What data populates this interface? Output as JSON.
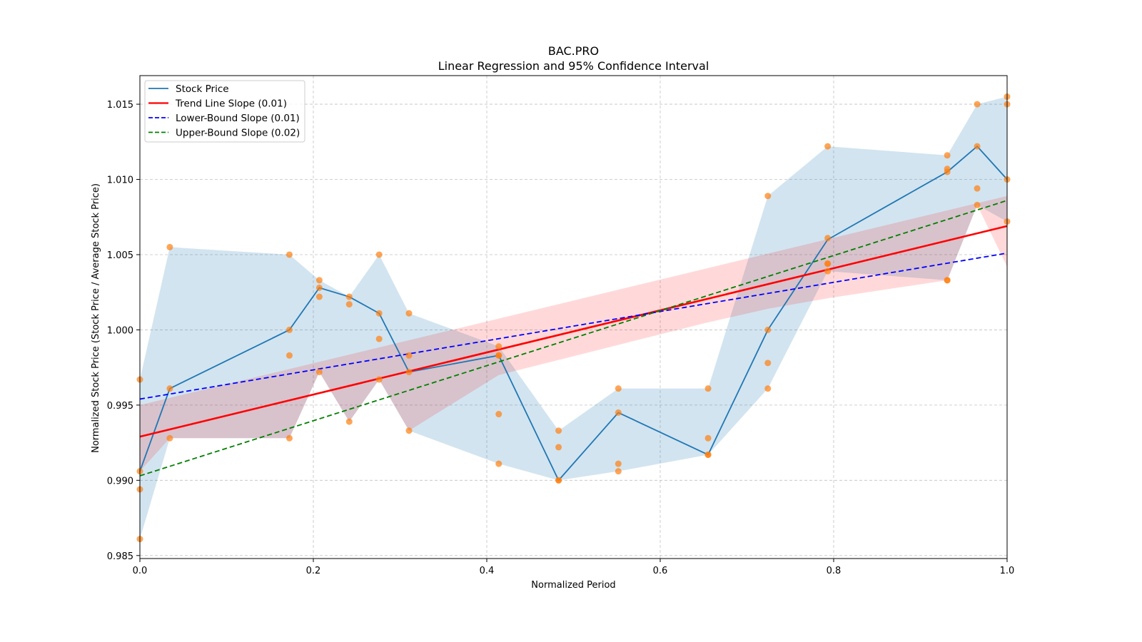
{
  "chart_data": {
    "type": "line",
    "title": "BAC.PRO",
    "subtitle": "Linear Regression and 95% Confidence Interval",
    "xlabel": "Normalized Period",
    "ylabel": "Normalized Stock Price (Stock Price / Average Stock Price)",
    "xlim": [
      0.0,
      1.0
    ],
    "ylim": [
      0.9848,
      1.0169
    ],
    "xticks": [
      0.0,
      0.2,
      0.4,
      0.6,
      0.8,
      1.0
    ],
    "xtick_labels": [
      "0.0",
      "0.2",
      "0.4",
      "0.6",
      "0.8",
      "1.0"
    ],
    "yticks": [
      0.985,
      0.99,
      0.995,
      1.0,
      1.005,
      1.01,
      1.015
    ],
    "ytick_labels": [
      "0.985",
      "0.990",
      "0.995",
      "1.000",
      "1.005",
      "1.010",
      "1.015"
    ],
    "grid": true,
    "legend_position": "top-left",
    "colors": {
      "stock": "#1f77b4",
      "stock_band": "#1f77b4",
      "scatter": "#ff7f0e",
      "trend": "#ff0000",
      "trend_band": "#ff0000",
      "lower": "#0000ff",
      "upper": "#008000"
    },
    "legend": [
      {
        "label": "Stock Price",
        "style": "solid",
        "color": "#1f77b4"
      },
      {
        "label": "Trend Line Slope (0.01)",
        "style": "solid",
        "color": "#ff0000"
      },
      {
        "label": "Lower-Bound Slope (0.01)",
        "style": "dashed",
        "color": "#0000ff"
      },
      {
        "label": "Upper-Bound Slope (0.02)",
        "style": "dashed",
        "color": "#008000"
      }
    ],
    "x": [
      0.0,
      0.0345,
      0.1724,
      0.2069,
      0.2414,
      0.2759,
      0.3103,
      0.4138,
      0.4828,
      0.5517,
      0.6552,
      0.7241,
      0.7931,
      0.931,
      0.9655,
      1.0
    ],
    "series": [
      {
        "name": "Stock Price",
        "values": [
          0.9906,
          0.9961,
          1.0,
          1.0028,
          1.0022,
          1.0011,
          0.9972,
          0.9983,
          0.99,
          0.9945,
          0.9917,
          1.0,
          1.006,
          1.0105,
          1.0122,
          1.01
        ]
      },
      {
        "name": "Stock Price Band Upper",
        "values": [
          0.9967,
          1.0055,
          1.005,
          1.0033,
          1.0022,
          1.005,
          1.0011,
          0.9989,
          0.9933,
          0.9961,
          0.9961,
          1.0089,
          1.0122,
          1.0116,
          1.015,
          1.0155
        ]
      },
      {
        "name": "Stock Price Band Lower",
        "values": [
          0.9861,
          0.9928,
          0.9928,
          0.9972,
          0.9939,
          0.9967,
          0.9933,
          0.9911,
          0.99,
          0.9906,
          0.9917,
          0.9961,
          1.0039,
          1.0033,
          1.0083,
          1.0072
        ]
      },
      {
        "name": "Trend Line Slope (0.01)",
        "values": [
          0.9929,
          1.0069
        ]
      },
      {
        "name": "Lower-Bound Slope (0.01)",
        "values": [
          0.9954,
          1.0051
        ]
      },
      {
        "name": "Upper-Bound Slope (0.02)",
        "values": [
          0.9903,
          1.0086
        ]
      },
      {
        "name": "Trend Band Upper",
        "values": [
          0.995,
          1.0089
        ]
      },
      {
        "name": "Trend Band Lower",
        "values": [
          0.9906,
          1.0042
        ]
      }
    ],
    "trend_band_lower_points": {
      "x": [
        0.0,
        0.0345,
        0.1724,
        0.2069,
        0.2414,
        0.2759,
        0.3103,
        0.4138,
        0.4828,
        0.5517,
        0.6552,
        0.7241,
        0.7931,
        0.931,
        0.9655,
        1.0
      ],
      "y": [
        0.9906,
        0.9928,
        0.9928,
        0.9972,
        0.9939,
        0.9967,
        0.9933,
        0.997,
        0.998,
        0.999,
        1.0005,
        1.0014,
        1.0021,
        1.0033,
        1.0083,
        1.0042
      ]
    },
    "scatter": {
      "x": [
        0.0,
        0.0,
        0.0,
        0.0,
        0.0345,
        0.0345,
        0.0345,
        0.1724,
        0.1724,
        0.1724,
        0.1724,
        0.2069,
        0.2069,
        0.2069,
        0.2069,
        0.2414,
        0.2414,
        0.2414,
        0.2759,
        0.2759,
        0.2759,
        0.2759,
        0.3103,
        0.3103,
        0.3103,
        0.3103,
        0.4138,
        0.4138,
        0.4138,
        0.4138,
        0.4138,
        0.4828,
        0.4828,
        0.4828,
        0.4828,
        0.5517,
        0.5517,
        0.5517,
        0.5517,
        0.6552,
        0.6552,
        0.6552,
        0.6552,
        0.7241,
        0.7241,
        0.7241,
        0.7241,
        0.7931,
        0.7931,
        0.7931,
        0.7931,
        0.7931,
        0.931,
        0.931,
        0.931,
        0.931,
        0.931,
        0.9655,
        0.9655,
        0.9655,
        0.9655,
        1.0,
        1.0,
        1.0,
        1.0
      ],
      "y": [
        0.9967,
        0.9906,
        0.9894,
        0.9861,
        1.0055,
        0.9961,
        0.9928,
        1.005,
        1.0,
        0.9983,
        0.9928,
        1.0033,
        1.0028,
        1.0022,
        0.9972,
        1.0022,
        1.0017,
        0.9939,
        1.005,
        1.0011,
        0.9994,
        0.9967,
        1.0011,
        0.9983,
        0.9972,
        0.9933,
        0.9989,
        0.9983,
        0.9983,
        0.9944,
        0.9911,
        0.9933,
        0.9922,
        0.99,
        0.99,
        0.9961,
        0.9945,
        0.9911,
        0.9906,
        0.9961,
        0.9928,
        0.9917,
        0.9917,
        1.0089,
        1.0,
        0.9978,
        0.9961,
        1.0122,
        1.0061,
        1.0044,
        1.0044,
        1.0039,
        1.0116,
        1.0107,
        1.0105,
        1.0033,
        1.0033,
        1.015,
        1.0122,
        1.0094,
        1.0083,
        1.0155,
        1.015,
        1.01,
        1.0072
      ]
    }
  }
}
